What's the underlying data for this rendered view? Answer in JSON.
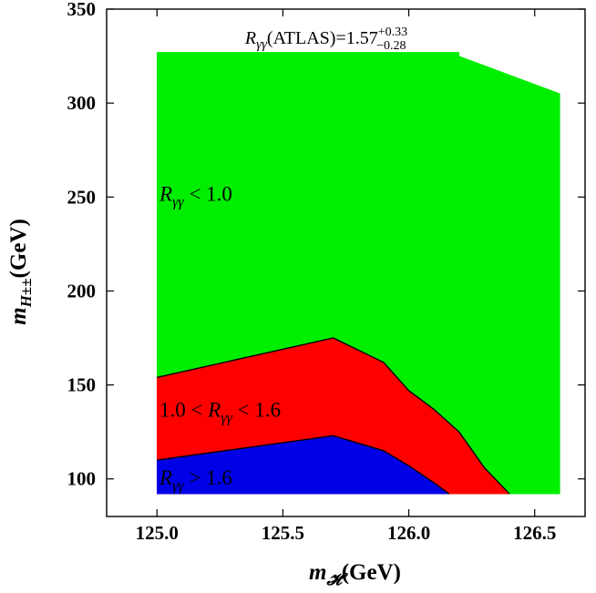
{
  "chart_data": {
    "type": "area",
    "title": {
      "r_symbol": "R",
      "r_sub": "γγ",
      "body": "(ATLAS)=1.57",
      "sup": "+0.33",
      "sub": "−0.28"
    },
    "xlabel": {
      "m": "m",
      "sub": "𝓗",
      "unit": "(GeV)"
    },
    "ylabel": {
      "m": "m",
      "sub": "H±±",
      "unit": "(GeV)"
    },
    "xlim": [
      124.8,
      126.7
    ],
    "ylim": [
      80,
      350
    ],
    "xticks": [
      {
        "value": 125.0,
        "label": "125.0"
      },
      {
        "value": 125.5,
        "label": "125.5"
      },
      {
        "value": 126.0,
        "label": "126.0"
      },
      {
        "value": 126.5,
        "label": "126.5"
      }
    ],
    "yticks": [
      {
        "value": 100,
        "label": "100"
      },
      {
        "value": 150,
        "label": "150"
      },
      {
        "value": 200,
        "label": "200"
      },
      {
        "value": 250,
        "label": "250"
      },
      {
        "value": 300,
        "label": "300"
      },
      {
        "value": 350,
        "label": "350"
      }
    ],
    "colors": {
      "green": "#00ee00",
      "red": "#ff0000",
      "blue": "#0000e6"
    },
    "regions": [
      {
        "key": "green",
        "color": "#00ee00",
        "polygon": [
          [
            125.0,
            92
          ],
          [
            125.0,
            327
          ],
          [
            126.2,
            327
          ],
          [
            126.2,
            325
          ],
          [
            126.6,
            305
          ],
          [
            126.6,
            92
          ]
        ]
      },
      {
        "key": "red",
        "color": "#ff0000",
        "polygon": [
          [
            125.0,
            92
          ],
          [
            125.0,
            154
          ],
          [
            125.7,
            175
          ],
          [
            125.9,
            162
          ],
          [
            126.0,
            147
          ],
          [
            126.1,
            137
          ],
          [
            126.2,
            125
          ],
          [
            126.3,
            106
          ],
          [
            126.4,
            92
          ]
        ]
      },
      {
        "key": "blue",
        "color": "#0000e6",
        "polygon": [
          [
            125.0,
            92
          ],
          [
            125.0,
            110
          ],
          [
            125.7,
            123
          ],
          [
            125.9,
            115
          ],
          [
            126.0,
            107
          ],
          [
            126.1,
            98
          ],
          [
            126.16,
            92
          ]
        ]
      }
    ],
    "annotations": [
      {
        "key": "green",
        "r": "R",
        "sub": "γγ",
        "text": " < 1.0",
        "x": 125.01,
        "y": 248
      },
      {
        "key": "red",
        "prefix": "1.0 < ",
        "r": "R",
        "sub": "γγ",
        "text": " < 1.6",
        "x": 125.01,
        "y": 133
      },
      {
        "key": "blue",
        "r": "R",
        "sub": "γγ",
        "text": " > 1.6",
        "x": 125.01,
        "y": 97
      }
    ]
  }
}
